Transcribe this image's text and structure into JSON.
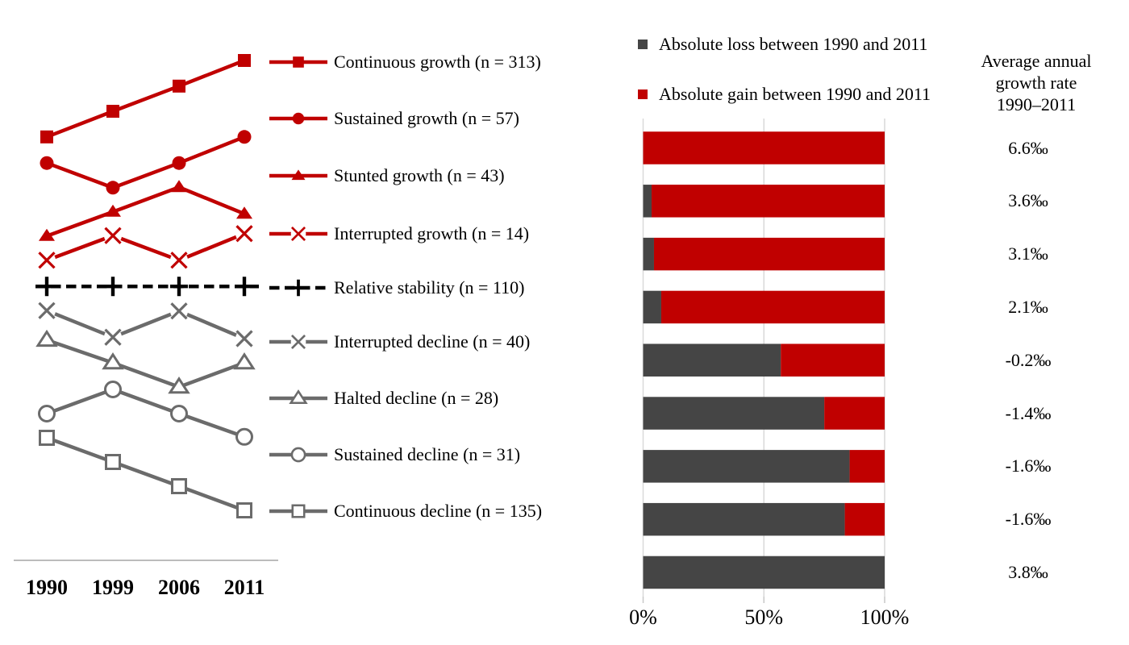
{
  "figure": {
    "background": "#ffffff",
    "colors": {
      "red": "#c00000",
      "bar_gray": "#454545",
      "line_gray": "#6b6b6b",
      "black": "#000000",
      "gridline": "#d9d9d9",
      "axis_line": "#a6a6a6"
    }
  },
  "chart_data": [
    {
      "type": "line",
      "title": "",
      "x_categories": [
        "1990",
        "1999",
        "2006",
        "2011"
      ],
      "y_axis": {
        "visible": false,
        "scale": "relative level (unitless 0-100, estimated from pixels)"
      },
      "legend_position": "right",
      "series": [
        {
          "name": "Continuous growth (n = 313)",
          "color": "red",
          "line": "solid",
          "marker": "square-filled",
          "values": [
            81.7,
            87.0,
            92.2,
            97.5
          ]
        },
        {
          "name": "Sustained growth (n = 57)",
          "color": "red",
          "line": "solid",
          "marker": "circle-filled",
          "values": [
            76.3,
            71.2,
            76.3,
            81.7
          ]
        },
        {
          "name": "Stunted growth (n = 43)",
          "color": "red",
          "line": "solid",
          "marker": "triangle-filled",
          "values": [
            61.2,
            66.2,
            71.3,
            65.8
          ]
        },
        {
          "name": "Interrupted growth (n = 14)",
          "color": "red",
          "line": "solid",
          "marker": "x",
          "values": [
            56.2,
            61.3,
            56.2,
            61.7
          ]
        },
        {
          "name": "Relative stability (n = 110)",
          "color": "black",
          "line": "dashed",
          "marker": "plus",
          "extend_line": true,
          "values": [
            50.8,
            50.8,
            50.8,
            50.8
          ]
        },
        {
          "name": "Interrupted decline (n = 40)",
          "color": "gray",
          "line": "solid",
          "marker": "x",
          "values": [
            45.8,
            40.3,
            45.7,
            40.0
          ]
        },
        {
          "name": "Halted decline (n = 28)",
          "color": "gray",
          "line": "solid",
          "marker": "triangle-open",
          "values": [
            39.7,
            35.0,
            30.0,
            35.0
          ]
        },
        {
          "name": "Sustained decline (n = 31)",
          "color": "gray",
          "line": "solid",
          "marker": "circle-open",
          "values": [
            24.5,
            29.5,
            24.5,
            19.7
          ]
        },
        {
          "name": "Continuous decline (n = 135)",
          "color": "gray",
          "line": "solid",
          "marker": "square-open",
          "values": [
            19.5,
            14.5,
            9.5,
            4.5
          ]
        }
      ]
    },
    {
      "type": "bar",
      "orientation": "horizontal",
      "stacked": true,
      "grid": true,
      "x_range": [
        0,
        100
      ],
      "x_ticks": [
        "0%",
        "50%",
        "100%"
      ],
      "legend": [
        {
          "label": "Absolute loss between 1990 and 2011",
          "color": "bar_gray"
        },
        {
          "label": "Absolute gain between 1990 and 2011",
          "color": "red"
        }
      ],
      "right_column_header": "Average annual\ngrowth rate\n1990–2011",
      "rows": [
        {
          "loss_pct": 0,
          "gain_pct": 100,
          "growth_rate": "6.6‰"
        },
        {
          "loss_pct": 3.5,
          "gain_pct": 96.5,
          "growth_rate": "3.6‰"
        },
        {
          "loss_pct": 4.5,
          "gain_pct": 95.5,
          "growth_rate": "3.1‰"
        },
        {
          "loss_pct": 7.5,
          "gain_pct": 92.5,
          "growth_rate": "2.1‰"
        },
        {
          "loss_pct": 57,
          "gain_pct": 43,
          "growth_rate": "-0.2‰"
        },
        {
          "loss_pct": 75,
          "gain_pct": 25,
          "growth_rate": "-1.4‰"
        },
        {
          "loss_pct": 85.5,
          "gain_pct": 14.5,
          "growth_rate": "-1.6‰"
        },
        {
          "loss_pct": 83.5,
          "gain_pct": 16.5,
          "growth_rate": "-1.6‰"
        },
        {
          "loss_pct": 100,
          "gain_pct": 0,
          "growth_rate": "3.8‰"
        }
      ]
    }
  ]
}
